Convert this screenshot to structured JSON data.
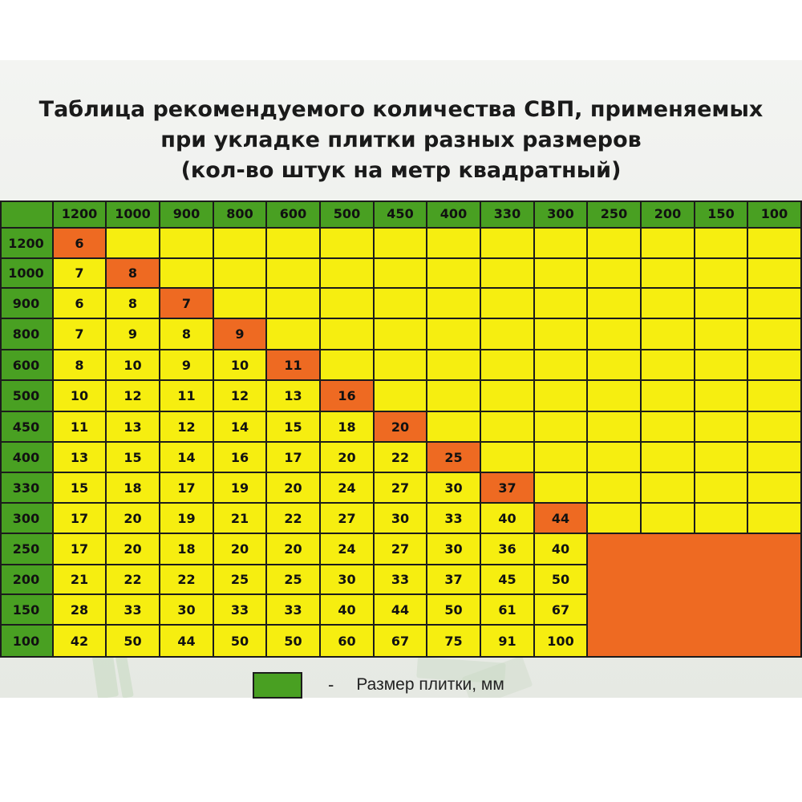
{
  "title": {
    "line1": "Таблица  рекомендуемого количества СВП, применяемых",
    "line2": "при укладке плитки разных размеров",
    "line3": "(кол-во штук на  метр квадратный)"
  },
  "colors": {
    "header": "#49a022",
    "cell": "#f6ee10",
    "highlight": "#ee6a22"
  },
  "table": {
    "column_headers": [
      "1200",
      "1000",
      "900",
      "800",
      "600",
      "500",
      "450",
      "400",
      "330",
      "300",
      "250",
      "200",
      "150",
      "100"
    ],
    "row_headers": [
      "1200",
      "1000",
      "900",
      "800",
      "600",
      "500",
      "450",
      "400",
      "330",
      "300",
      "250",
      "200",
      "150",
      "100"
    ],
    "rows": [
      [
        "6"
      ],
      [
        "7",
        "8"
      ],
      [
        "6",
        "8",
        "7"
      ],
      [
        "7",
        "9",
        "8",
        "9"
      ],
      [
        "8",
        "10",
        "9",
        "10",
        "11"
      ],
      [
        "10",
        "12",
        "11",
        "12",
        "13",
        "16"
      ],
      [
        "11",
        "13",
        "12",
        "14",
        "15",
        "18",
        "20"
      ],
      [
        "13",
        "15",
        "14",
        "16",
        "17",
        "20",
        "22",
        "25"
      ],
      [
        "15",
        "18",
        "17",
        "19",
        "20",
        "24",
        "27",
        "30",
        "37"
      ],
      [
        "17",
        "20",
        "19",
        "21",
        "22",
        "27",
        "30",
        "33",
        "40",
        "44"
      ],
      [
        "17",
        "20",
        "18",
        "20",
        "20",
        "24",
        "27",
        "30",
        "36",
        "40"
      ],
      [
        "21",
        "22",
        "22",
        "25",
        "25",
        "30",
        "33",
        "37",
        "45",
        "50"
      ],
      [
        "28",
        "33",
        "30",
        "33",
        "33",
        "40",
        "44",
        "50",
        "61",
        "67"
      ],
      [
        "42",
        "50",
        "44",
        "50",
        "50",
        "60",
        "67",
        "75",
        "91",
        "100"
      ]
    ]
  },
  "legend": {
    "dash": "-",
    "label": "Размер плитки, мм"
  }
}
